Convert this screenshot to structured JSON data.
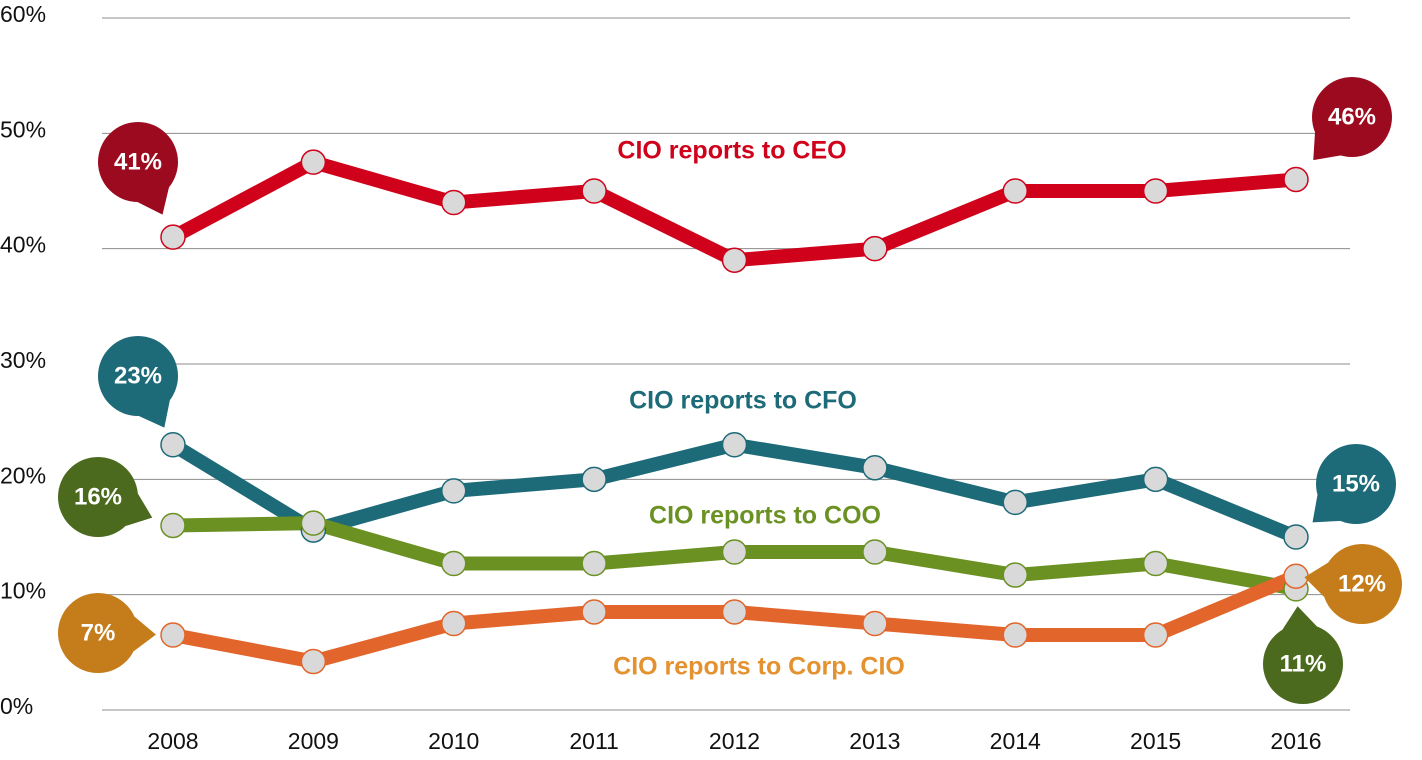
{
  "chart_data": {
    "type": "line",
    "x": [
      "2008",
      "2009",
      "2010",
      "2011",
      "2012",
      "2013",
      "2014",
      "2015",
      "2016"
    ],
    "ylim": [
      0,
      60
    ],
    "yticks": [
      {
        "value": 0,
        "label": "0%"
      },
      {
        "value": 10,
        "label": "10%"
      },
      {
        "value": 20,
        "label": "20%"
      },
      {
        "value": 30,
        "label": "30%"
      },
      {
        "value": 40,
        "label": "40%"
      },
      {
        "value": 50,
        "label": "50%"
      },
      {
        "value": 60,
        "label": "60%"
      }
    ],
    "grid": true,
    "series": [
      {
        "name": "CIO reports to CEO",
        "color": "#d0021b",
        "label_color": "#d0021b",
        "bubble_color": "#9b0a1e",
        "values": [
          41,
          47.5,
          44,
          45,
          39,
          40,
          45,
          45,
          46
        ],
        "value_labels": [
          "41%",
          null,
          null,
          null,
          null,
          null,
          null,
          null,
          "46%"
        ]
      },
      {
        "name": "CIO reports to CFO",
        "color": "#1d6a78",
        "label_color": "#1d6a78",
        "bubble_color": "#1d6a78",
        "values": [
          23,
          15.6,
          19,
          20,
          23,
          21,
          18,
          20,
          15
        ],
        "value_labels": [
          "23%",
          null,
          null,
          null,
          null,
          null,
          null,
          null,
          "15%"
        ]
      },
      {
        "name": "CIO reports to COO",
        "color": "#6b9123",
        "label_color": "#6b9123",
        "bubble_color": "#4b6a1e",
        "values": [
          16,
          16.2,
          12.7,
          12.7,
          13.7,
          13.7,
          11.7,
          12.7,
          10.5
        ],
        "value_labels": [
          "16%",
          null,
          null,
          null,
          null,
          null,
          null,
          null,
          "11%"
        ]
      },
      {
        "name": "CIO reports to Corp. CIO",
        "color": "#e2652b",
        "label_color": "#e3922f",
        "bubble_color": "#c47d1a",
        "values": [
          6.5,
          4.2,
          7.5,
          8.5,
          8.5,
          7.5,
          6.5,
          6.5,
          11.6
        ],
        "value_labels": [
          "7%",
          null,
          null,
          null,
          null,
          null,
          null,
          null,
          "12%"
        ]
      }
    ]
  }
}
